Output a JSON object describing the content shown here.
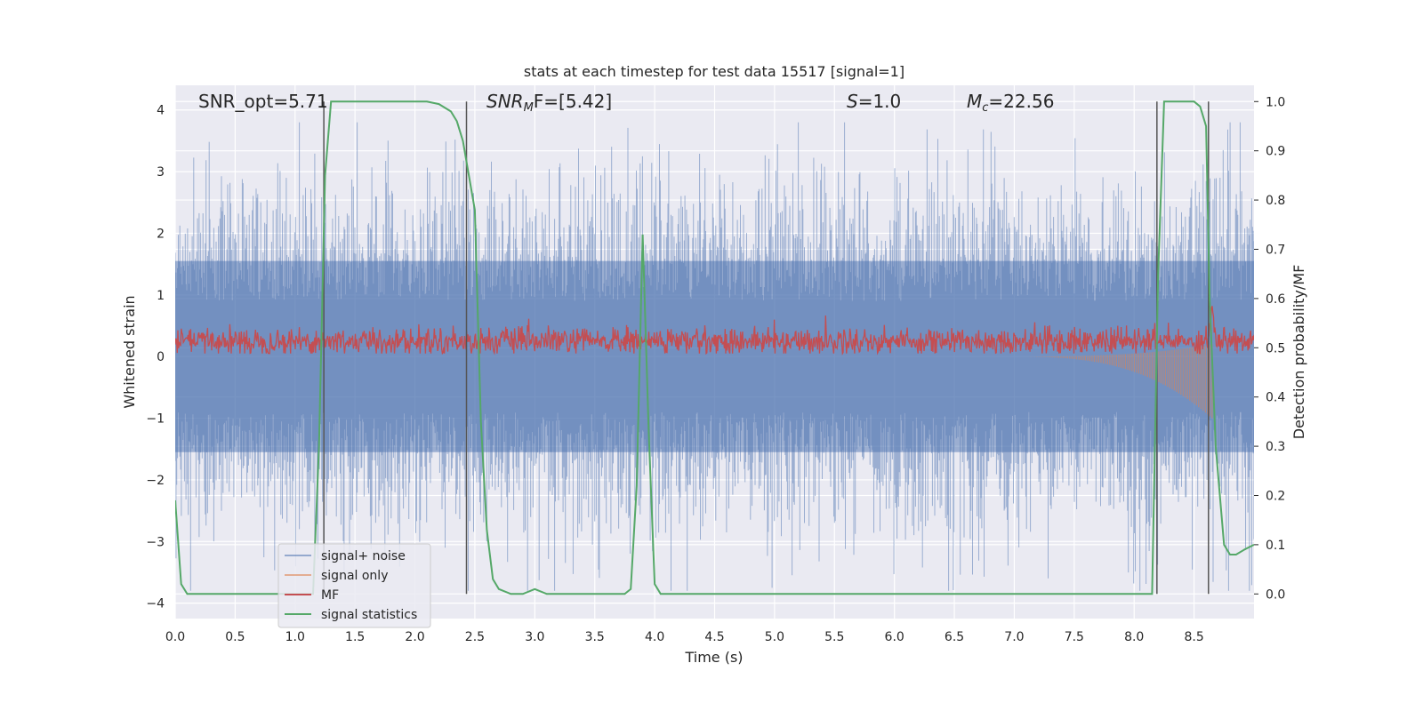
{
  "chart_data": {
    "type": "line",
    "title": "stats at each timestep for test data 15517 [signal=1]",
    "xlabel": "Time (s)",
    "ylabel_left": "Whitened strain",
    "ylabel_right": "Detection probability/MF",
    "xlim": [
      0.0,
      9.0
    ],
    "ylim_left": [
      -4.25,
      4.4
    ],
    "ylim_right": [
      -0.05,
      1.033
    ],
    "x_ticks": [
      "0.0",
      "0.5",
      "1.0",
      "1.5",
      "2.0",
      "2.5",
      "3.0",
      "3.5",
      "4.0",
      "4.5",
      "5.0",
      "5.5",
      "6.0",
      "6.5",
      "7.0",
      "7.5",
      "8.0",
      "8.5"
    ],
    "y_ticks_left": [
      "4",
      "3",
      "2",
      "1",
      "0",
      "−1",
      "−2",
      "−3",
      "−4"
    ],
    "y_ticks_right": [
      "1.0",
      "0.9",
      "0.8",
      "0.7",
      "0.6",
      "0.5",
      "0.4",
      "0.3",
      "0.2",
      "0.1",
      "0.0"
    ],
    "annotations": [
      {
        "text": "SNR_opt=5.71",
        "x": 0.2
      },
      {
        "text_main": "SNR",
        "text_sub": "M",
        "text_rest": "F=[5.42]",
        "x": 2.6
      },
      {
        "text_main": "S",
        "text_rest": "=1.0",
        "x": 5.6
      },
      {
        "text_main": "M",
        "text_sub": "c",
        "text_rest": "=22.56",
        "x": 6.6
      }
    ],
    "vertical_lines": [
      1.24,
      2.43,
      8.19,
      8.62
    ],
    "legend": {
      "position": "lower-left",
      "entries": [
        {
          "label": "signal+ noise",
          "color": "#4c72b0"
        },
        {
          "label": "signal only",
          "color": "#dd8452"
        },
        {
          "label": "MF",
          "color": "#c44e52"
        },
        {
          "label": "signal statistics",
          "color": "#55a868"
        }
      ]
    },
    "series": [
      {
        "name": "signal statistics",
        "axis": "right",
        "color": "#55a868",
        "x": [
          0.0,
          0.05,
          0.1,
          0.15,
          0.2,
          0.4,
          0.6,
          0.8,
          1.0,
          1.15,
          1.2,
          1.25,
          1.3,
          1.5,
          1.7,
          1.9,
          2.1,
          2.2,
          2.3,
          2.35,
          2.4,
          2.45,
          2.5,
          2.55,
          2.6,
          2.65,
          2.7,
          2.8,
          2.9,
          3.0,
          3.1,
          3.2,
          3.4,
          3.6,
          3.75,
          3.8,
          3.85,
          3.9,
          3.95,
          4.0,
          4.05,
          4.1,
          4.3,
          4.5,
          5.0,
          5.5,
          5.9,
          6.0,
          6.5,
          7.0,
          7.5,
          8.0,
          8.1,
          8.15,
          8.2,
          8.25,
          8.3,
          8.5,
          8.55,
          8.6,
          8.63,
          8.68,
          8.75,
          8.8,
          8.85,
          8.92,
          9.0
        ],
        "y": [
          0.19,
          0.02,
          0.0,
          0.0,
          0.0,
          0.0,
          0.0,
          0.0,
          0.0,
          0.0,
          0.3,
          0.85,
          1.0,
          1.0,
          1.0,
          1.0,
          1.0,
          0.995,
          0.98,
          0.96,
          0.92,
          0.85,
          0.78,
          0.35,
          0.13,
          0.03,
          0.01,
          0.0,
          0.0,
          0.01,
          0.0,
          0.0,
          0.0,
          0.0,
          0.0,
          0.01,
          0.22,
          0.73,
          0.33,
          0.02,
          0.0,
          0.0,
          0.0,
          0.0,
          0.0,
          0.0,
          0.0,
          0.0,
          0.0,
          0.0,
          0.0,
          0.0,
          0.0,
          0.0,
          0.65,
          1.0,
          1.0,
          1.0,
          0.99,
          0.95,
          0.6,
          0.3,
          0.1,
          0.08,
          0.08,
          0.09,
          0.1
        ]
      }
    ],
    "signal_noise_band": {
      "name": "signal+ noise",
      "axis": "left",
      "typical_range": [
        -2.0,
        2.0
      ],
      "peak_range": [
        -3.8,
        3.8
      ]
    },
    "signal_only": {
      "name": "signal only",
      "axis": "left",
      "chirp_end": 8.65,
      "peak_amplitude": 1.0
    },
    "mf": {
      "name": "MF",
      "axis": "left",
      "mean": 0.25,
      "spread": 0.2
    }
  }
}
